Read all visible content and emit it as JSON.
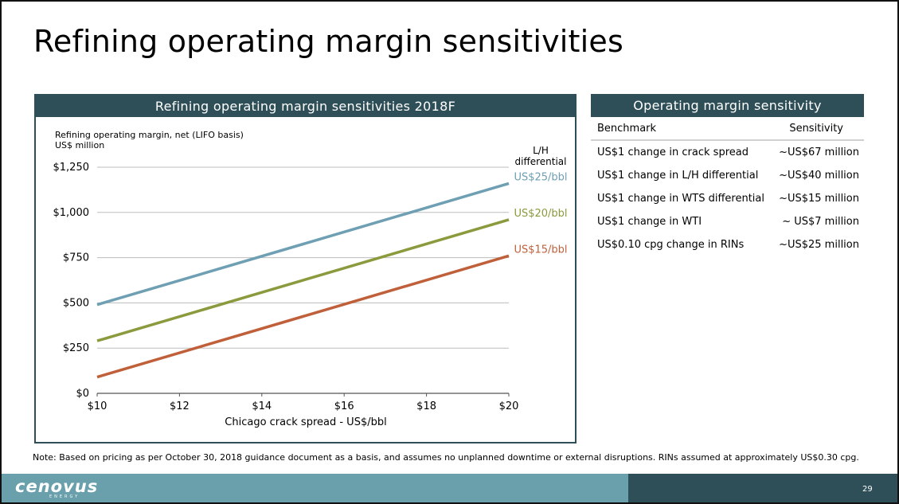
{
  "title": "Refining operating margin sensitivities",
  "chart_panel": {
    "header": "Refining operating margin sensitivities 2018F"
  },
  "chart_data": {
    "type": "line",
    "ylabel_line1": "Refining operating margin, net (LIFO basis)",
    "ylabel_line2": "US$ million",
    "xlabel": "Chicago crack spread - US$/bbl",
    "legend_title_line1": "L/H",
    "legend_title_line2": "differential",
    "x_ticks": [
      "$10",
      "$12",
      "$14",
      "$16",
      "$18",
      "$20"
    ],
    "x_values": [
      10,
      12,
      14,
      16,
      18,
      20
    ],
    "y_ticks": [
      "$0",
      "$250",
      "$500",
      "$750",
      "$1,000",
      "$1,250"
    ],
    "y_values": [
      0,
      250,
      500,
      750,
      1000,
      1250
    ],
    "xlim": [
      10,
      20
    ],
    "ylim": [
      0,
      1250
    ],
    "grid": true,
    "series": [
      {
        "name": "US$25/bbl",
        "color": "#6e9fb3",
        "x": [
          10,
          20
        ],
        "y": [
          490,
          1160
        ]
      },
      {
        "name": "US$20/bbl",
        "color": "#8a9a3c",
        "x": [
          10,
          20
        ],
        "y": [
          290,
          960
        ]
      },
      {
        "name": "US$15/bbl",
        "color": "#c0603a",
        "x": [
          10,
          20
        ],
        "y": [
          90,
          760
        ]
      }
    ]
  },
  "table_panel": {
    "header": "Operating margin sensitivity",
    "col_benchmark": "Benchmark",
    "col_sensitivity": "Sensitivity",
    "rows": [
      {
        "benchmark": "US$1 change in crack spread",
        "sensitivity": "~US$67 million"
      },
      {
        "benchmark": "US$1 change in L/H differential",
        "sensitivity": "~US$40 million"
      },
      {
        "benchmark": "US$1 change in WTS differential",
        "sensitivity": "~US$15 million"
      },
      {
        "benchmark": "US$1 change in WTI",
        "sensitivity": "~ US$7 million"
      },
      {
        "benchmark": "US$0.10 cpg change in RINs",
        "sensitivity": "~US$25 million"
      }
    ]
  },
  "note": "Note: Based on pricing as per October 30, 2018 guidance document as a basis, and assumes no unplanned downtime or external disruptions. RINs assumed at approximately US$0.30 cpg.",
  "footer": {
    "logo": "cenovus",
    "logo_sub": "ENERGY",
    "page_number": "29"
  }
}
